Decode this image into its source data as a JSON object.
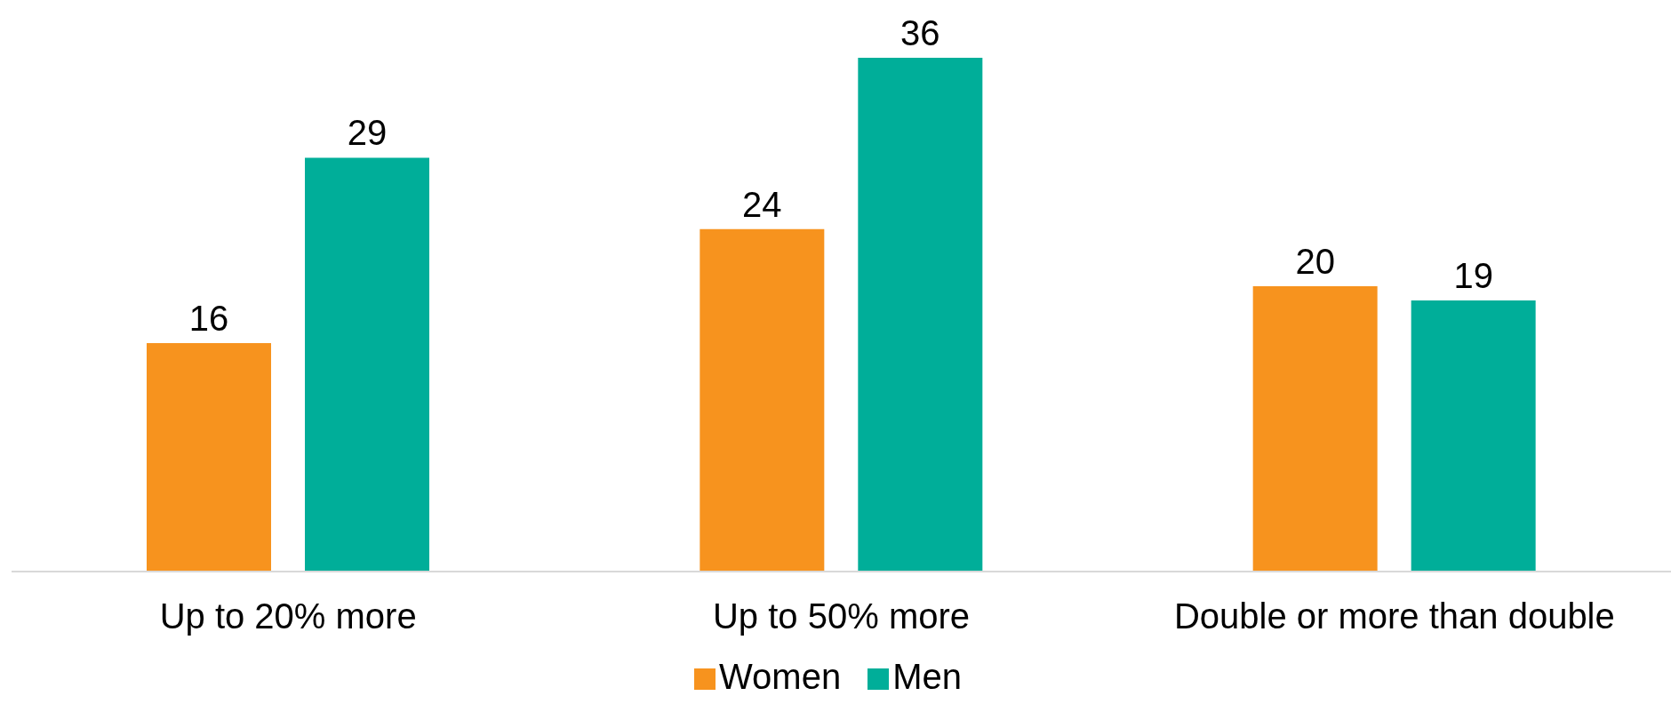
{
  "chart_data": {
    "type": "bar",
    "categories": [
      "Up to 20% more",
      "Up to 50% more",
      "Double or more than double"
    ],
    "series": [
      {
        "name": "Women",
        "color": "#f7931e",
        "values": [
          16,
          24,
          20
        ]
      },
      {
        "name": "Men",
        "color": "#00ae99",
        "values": [
          29,
          36,
          19
        ]
      }
    ],
    "data_labels": true,
    "legend": "bottom"
  }
}
